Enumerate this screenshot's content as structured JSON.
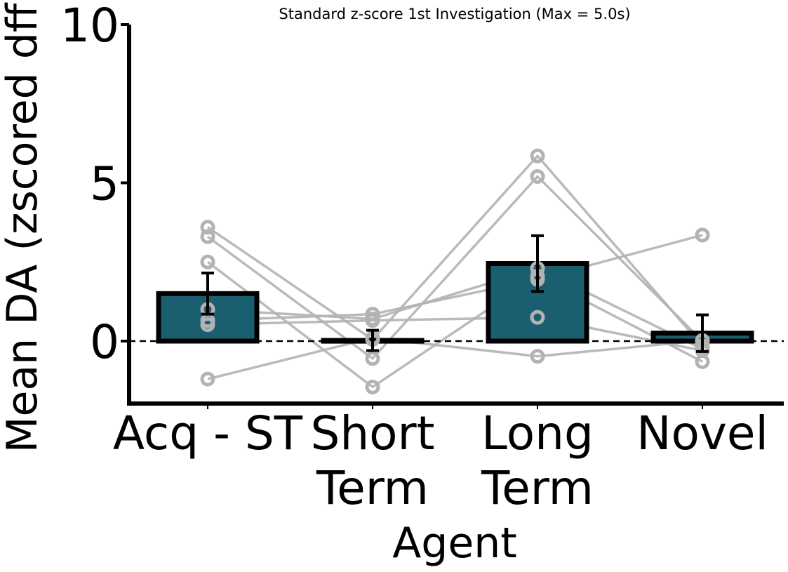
{
  "chart_data": {
    "type": "bar",
    "title": "Standard z-score 1st Investigation (Max = 5.0s)",
    "xlabel": "Agent",
    "ylabel": "Mean DA (zscored dff",
    "ylim": [
      -2,
      10
    ],
    "yticks": [
      0,
      5,
      10
    ],
    "categories": [
      [
        "Acq - ST"
      ],
      [
        "Short",
        "Term"
      ],
      [
        "Long",
        "Term"
      ],
      [
        "Novel"
      ]
    ],
    "values": [
      1.5,
      0.02,
      2.45,
      0.25
    ],
    "errors": [
      0.65,
      0.32,
      0.88,
      0.58
    ],
    "bar_color": "#1a5f6f",
    "bar_edge_color": "#000000",
    "individual_color": "#b3b3b3",
    "zero_line": true,
    "grid": false,
    "subjects": [
      [
        3.6,
        0.05,
        5.85,
        -0.15
      ],
      [
        3.3,
        -0.55,
        5.2,
        0.0
      ],
      [
        2.5,
        -1.45,
        2.05,
        -0.65
      ],
      [
        1.0,
        0.7,
        2.3,
        -0.25
      ],
      [
        0.65,
        0.85,
        1.95,
        3.35
      ],
      [
        0.52,
        0.65,
        0.75,
        -0.3
      ],
      [
        -1.2,
        0.1,
        -0.48,
        0.02
      ]
    ]
  }
}
